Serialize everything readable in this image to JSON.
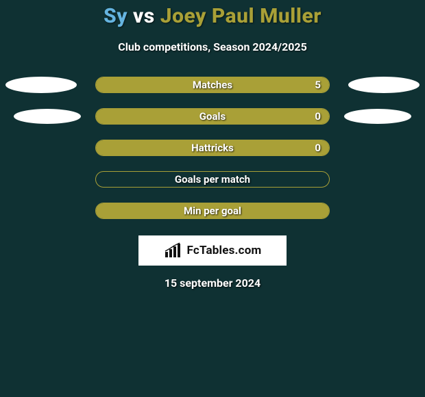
{
  "background_color": "#0f3133",
  "title": {
    "player1": "Sy",
    "player1_color": "#65b4e0",
    "vs": "vs",
    "vs_color": "#ffffff",
    "player2": "Joey Paul Muller",
    "player2_color": "#a9a037",
    "fontsize": 30
  },
  "subtitle": {
    "text": "Club competitions, Season 2024/2025",
    "fontsize": 16
  },
  "rows": [
    {
      "label": "Matches",
      "border_color": "#a9a037",
      "fill_color": "#a9a037",
      "fill_right_pct": 100,
      "value_right": "5",
      "left_ellipse": {
        "show": true,
        "variant": "large"
      },
      "right_ellipse": {
        "show": true,
        "variant": "large"
      }
    },
    {
      "label": "Goals",
      "border_color": "#a9a037",
      "fill_color": "#a9a037",
      "fill_right_pct": 100,
      "value_right": "0",
      "left_ellipse": {
        "show": true,
        "variant": "small"
      },
      "right_ellipse": {
        "show": true,
        "variant": "small"
      }
    },
    {
      "label": "Hattricks",
      "border_color": "#a9a037",
      "fill_color": "#a9a037",
      "fill_right_pct": 100,
      "value_right": "0",
      "left_ellipse": {
        "show": false
      },
      "right_ellipse": {
        "show": false
      }
    },
    {
      "label": "Goals per match",
      "border_color": "#a9a037",
      "fill_color": "#a9a037",
      "fill_right_pct": 0,
      "value_right": "",
      "left_ellipse": {
        "show": false
      },
      "right_ellipse": {
        "show": false
      }
    },
    {
      "label": "Min per goal",
      "border_color": "#a9a037",
      "fill_color": "#a9a037",
      "fill_right_pct": 100,
      "value_right": "",
      "left_ellipse": {
        "show": false
      },
      "right_ellipse": {
        "show": false
      }
    }
  ],
  "branding": {
    "text": "FcTables.com",
    "bg": "#ffffff",
    "fg": "#111111"
  },
  "date": {
    "text": "15 september 2024"
  }
}
